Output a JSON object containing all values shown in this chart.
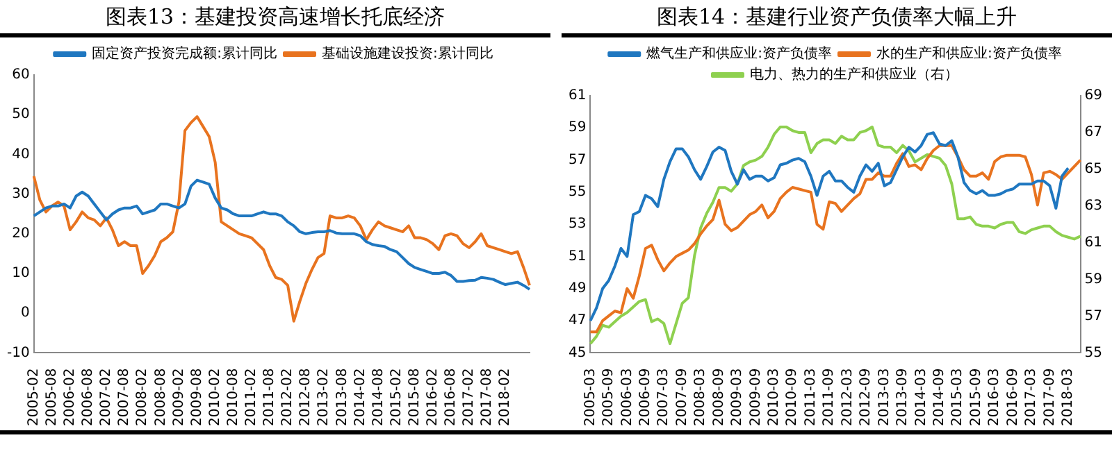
{
  "chart_data": [
    {
      "type": "line",
      "title": "图表13：基建投资高速增长托底经济",
      "legend": "top",
      "categories": [
        "2005-02",
        null,
        null,
        "2005-08",
        null,
        null,
        "2006-02",
        null,
        null,
        "2006-08",
        null,
        null,
        "2007-02",
        null,
        null,
        "2007-08",
        null,
        null,
        "2008-02",
        null,
        null,
        "2008-08",
        null,
        null,
        "2009-02",
        null,
        null,
        "2009-08",
        null,
        null,
        "2010-02",
        null,
        null,
        "2010-08",
        null,
        null,
        "2011-02",
        null,
        null,
        "2011-08",
        null,
        null,
        "2012-02",
        null,
        null,
        "2012-08",
        null,
        null,
        "2013-02",
        null,
        null,
        "2013-08",
        null,
        null,
        "2014-02",
        null,
        null,
        "2014-08",
        null,
        null,
        "2015-02",
        null,
        null,
        "2015-08",
        null,
        null,
        "2016-02",
        null,
        null,
        "2016-08",
        null,
        null,
        "2017-02",
        null,
        null,
        "2017-08",
        null,
        null,
        "2018-02",
        null,
        null,
        null,
        null
      ],
      "series": [
        {
          "name": "固定资产投资完成额:累计同比",
          "color": "#1f77c0",
          "values": [
            24.5,
            25.5,
            26.5,
            27,
            27,
            27.5,
            26.5,
            29.5,
            30.5,
            29.5,
            27.5,
            25.5,
            23.5,
            25,
            26,
            26.5,
            26.5,
            27,
            25,
            25.5,
            26,
            27.5,
            27.5,
            27,
            26.5,
            27.5,
            32,
            33.5,
            33,
            32.5,
            29,
            26.5,
            26,
            25,
            24.5,
            24.5,
            24.5,
            25,
            25.5,
            25,
            25,
            24.5,
            23,
            22,
            20.5,
            20,
            20.3,
            20.5,
            20.5,
            20.8,
            20.2,
            20,
            20,
            20,
            19.5,
            18,
            17.3,
            17,
            16.8,
            16,
            15.5,
            14,
            12.5,
            11.5,
            11,
            10.5,
            10,
            10,
            10.3,
            9.5,
            8,
            8,
            8.2,
            8.3,
            9,
            8.8,
            8.5,
            7.8,
            7.2,
            7.5,
            7.8,
            7,
            6
          ]
        },
        {
          "name": "基础设施建设投资:累计同比",
          "color": "#e8731f",
          "values": [
            34.5,
            28.5,
            25.5,
            27,
            28,
            27,
            21,
            23,
            25.5,
            24,
            23.5,
            22,
            24,
            21,
            17,
            18,
            17,
            17,
            10,
            12,
            14.5,
            18,
            19,
            20.5,
            28,
            46,
            48,
            49.5,
            47,
            44.5,
            38,
            23,
            22,
            21,
            20,
            19.5,
            19,
            17.5,
            16,
            12,
            9,
            8.5,
            7,
            -2,
            3,
            7.5,
            11,
            14,
            15,
            24.5,
            24,
            24,
            24.5,
            24,
            22,
            18.5,
            21,
            23,
            22,
            21.5,
            21,
            20.5,
            22,
            19,
            19,
            18.5,
            17.5,
            16,
            19.5,
            20,
            19.5,
            17.5,
            16.5,
            18,
            20,
            17,
            16.5,
            16,
            15.5,
            15,
            15.5,
            11.5,
            7
          ]
        }
      ],
      "ylim": [
        -10,
        60
      ],
      "yticks": [
        -10,
        0,
        10,
        20,
        30,
        40,
        50,
        60
      ]
    },
    {
      "type": "line",
      "title": "图表14：基建行业资产负债率大幅上升",
      "legend": "top",
      "categories": [
        "2005-03",
        null,
        null,
        "2005-09",
        null,
        null,
        "2006-03",
        null,
        null,
        "2006-09",
        null,
        null,
        "2007-03",
        null,
        null,
        "2007-09",
        null,
        null,
        "2008-03",
        null,
        null,
        "2008-09",
        null,
        null,
        "2009-03",
        null,
        null,
        "2009-09",
        null,
        null,
        "2010-03",
        null,
        null,
        "2010-09",
        null,
        null,
        "2011-03",
        null,
        null,
        "2011-09",
        null,
        null,
        "2012-03",
        null,
        null,
        "2012-09",
        null,
        null,
        "2013-03",
        null,
        null,
        "2013-09",
        null,
        null,
        "2014-03",
        null,
        null,
        "2014-09",
        null,
        null,
        "2015-03",
        null,
        null,
        "2015-09",
        null,
        null,
        "2016-03",
        null,
        null,
        "2016-09",
        null,
        null,
        "2017-03",
        null,
        null,
        "2017-09",
        null,
        null,
        "2018-03",
        null,
        null
      ],
      "series": [
        {
          "name": "燃气生产和供应业:资产负债率",
          "color": "#1f77c0",
          "values": [
            47.0,
            47.8,
            49.0,
            49.5,
            50.4,
            51.5,
            51.0,
            53.6,
            53.8,
            54.8,
            54.6,
            54.1,
            55.8,
            56.9,
            57.7,
            57.7,
            57.2,
            56.4,
            55.8,
            56.6,
            57.5,
            57.8,
            57.6,
            56.3,
            55.5,
            56.4,
            55.8,
            56.0,
            56.0,
            55.7,
            55.9,
            56.7,
            56.8,
            57.0,
            57.1,
            56.9,
            56.0,
            54.8,
            56.0,
            56.3,
            55.7,
            55.7,
            55.3,
            55.0,
            56.0,
            56.7,
            56.3,
            56.8,
            55.4,
            55.6,
            56.4,
            57.2,
            57.8,
            57.5,
            57.9,
            58.6,
            58.7,
            58.0,
            57.9,
            58.2,
            57.2,
            55.6,
            55.1,
            54.9,
            55.1,
            54.8,
            54.8,
            54.9,
            55.1,
            55.2,
            55.5,
            55.5,
            55.5,
            55.7,
            55.7,
            55.4,
            54.0,
            56.0,
            56.5,
            null,
            null
          ]
        },
        {
          "name": "水的生产和供应业:资产负债率",
          "color": "#e8731f",
          "values": [
            46.3,
            46.3,
            47.0,
            47.3,
            47.6,
            47.5,
            49.0,
            48.4,
            49.8,
            51.5,
            51.7,
            50.8,
            50.1,
            50.6,
            51.0,
            51.2,
            51.4,
            51.8,
            52.4,
            52.9,
            53.3,
            54.5,
            53.0,
            52.6,
            52.8,
            53.2,
            53.6,
            53.8,
            54.2,
            53.4,
            53.8,
            54.6,
            55.0,
            55.3,
            55.2,
            55.1,
            55.0,
            53.0,
            52.7,
            54.4,
            54.3,
            53.8,
            54.2,
            54.6,
            54.9,
            55.8,
            55.8,
            56.2,
            56.0,
            56.0,
            56.8,
            57.4,
            56.6,
            56.7,
            56.4,
            57.1,
            57.6,
            57.9,
            57.9,
            57.9,
            57.2,
            56.4,
            56.0,
            56.0,
            56.2,
            55.8,
            56.9,
            57.2,
            57.3,
            57.3,
            57.3,
            57.2,
            56.1,
            54.2,
            56.2,
            56.3,
            56.1,
            55.8,
            56.2,
            56.6,
            57.0
          ]
        },
        {
          "name": "电力、热力的生产和供应业（右）",
          "color": "#8ed04f",
          "axis": "y2",
          "values": [
            55.5,
            55.9,
            56.5,
            56.4,
            56.7,
            57.0,
            57.2,
            57.5,
            57.8,
            57.9,
            56.7,
            56.85,
            56.6,
            55.5,
            56.6,
            57.7,
            58.0,
            60.3,
            61.8,
            62.6,
            63.2,
            64.0,
            64.0,
            63.8,
            64.2,
            65.2,
            65.4,
            65.5,
            65.7,
            66.2,
            66.9,
            67.3,
            67.3,
            67.1,
            67.0,
            67.0,
            65.9,
            66.4,
            66.6,
            66.6,
            66.4,
            66.8,
            66.6,
            66.6,
            67.0,
            67.1,
            67.3,
            66.3,
            66.2,
            66.2,
            65.9,
            66.3,
            66.0,
            65.4,
            65.6,
            65.8,
            65.7,
            65.6,
            65.2,
            64.2,
            62.3,
            62.3,
            62.4,
            62.0,
            61.9,
            61.9,
            61.8,
            62.0,
            62.1,
            62.1,
            61.6,
            61.5,
            61.7,
            61.8,
            61.9,
            61.9,
            61.6,
            61.4,
            61.3,
            61.2,
            61.35
          ]
        }
      ],
      "ylim": [
        45,
        61
      ],
      "yticks": [
        45,
        47,
        49,
        51,
        53,
        55,
        57,
        59,
        61
      ],
      "y2lim": [
        55,
        69
      ],
      "y2ticks": [
        55,
        57,
        59,
        61,
        63,
        65,
        67,
        69
      ]
    }
  ]
}
